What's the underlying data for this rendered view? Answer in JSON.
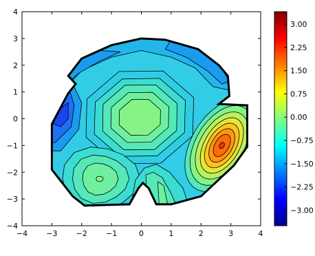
{
  "chart_data": {
    "type": "filled-contour",
    "title": "",
    "xlabel": "",
    "ylabel": "",
    "xlim": [
      -4,
      4
    ],
    "ylim": [
      -4,
      4
    ],
    "xticks": [
      -4,
      -3,
      -2,
      -1,
      0,
      1,
      2,
      3,
      4
    ],
    "yticks": [
      -4,
      -3,
      -2,
      -1,
      0,
      1,
      2,
      3,
      4
    ],
    "xtick_labels": [
      "−4",
      "−3",
      "−2",
      "−1",
      "0",
      "1",
      "2",
      "3",
      "4"
    ],
    "ytick_labels": [
      "−4",
      "−3",
      "−2",
      "−1",
      "0",
      "1",
      "2",
      "3",
      "4"
    ],
    "grid": false,
    "colormap": "jet",
    "colorbar": {
      "range": [
        -3.5,
        3.4
      ],
      "ticks": [
        3.0,
        2.25,
        1.5,
        0.75,
        0.0,
        -0.75,
        -1.5,
        -2.25,
        -3.0
      ],
      "tick_labels": [
        "3.00",
        "2.25",
        "1.50",
        "0.75",
        "0.00",
        "−0.75",
        "−1.50",
        "−2.25",
        "−3.00"
      ]
    },
    "boundary": [
      [
        -3.0,
        -1.1
      ],
      [
        -3.0,
        -0.2
      ],
      [
        -2.45,
        0.95
      ],
      [
        -2.2,
        1.3
      ],
      [
        -2.45,
        1.6
      ],
      [
        -2.0,
        2.25
      ],
      [
        -1.0,
        2.75
      ],
      [
        0.0,
        3.0
      ],
      [
        0.8,
        2.95
      ],
      [
        1.9,
        2.6
      ],
      [
        2.6,
        2.0
      ],
      [
        2.9,
        1.6
      ],
      [
        2.95,
        0.85
      ],
      [
        2.6,
        0.55
      ],
      [
        3.55,
        0.5
      ],
      [
        3.55,
        -1.05
      ],
      [
        3.1,
        -1.75
      ],
      [
        2.0,
        -2.9
      ],
      [
        1.0,
        -3.2
      ],
      [
        0.5,
        -3.2
      ],
      [
        0.25,
        -2.6
      ],
      [
        0.05,
        -2.4
      ],
      [
        -0.1,
        -2.6
      ],
      [
        -0.4,
        -3.2
      ],
      [
        -1.9,
        -3.25
      ],
      [
        -2.3,
        -2.9
      ],
      [
        -3.0,
        -1.9
      ]
    ],
    "features": [
      {
        "kind": "local maximum",
        "center": [
          -0.05,
          0.05
        ],
        "level": 0.1
      },
      {
        "kind": "local maximum",
        "center": [
          -1.4,
          -2.2
        ],
        "level": -0.3
      },
      {
        "kind": "peak",
        "center": [
          2.7,
          -1.0
        ],
        "level": 3.1
      },
      {
        "kind": "trough",
        "center": [
          -2.3,
          0.1
        ],
        "level": -2.4
      }
    ],
    "colors": {
      "background_fill": "#33cce6",
      "level_-2.4": "#1a44ee",
      "level_-2.1": "#1f70f2",
      "level_-1.8": "#1b9bf0",
      "level_-1.3": "#22b5ec",
      "level_-1.0": "#2ecde4",
      "level_-0.7": "#3ddcd2",
      "level_-0.4": "#55e8b8",
      "level_-0.15": "#6ff0a0",
      "level_0.1": "#86f387",
      "level_0.5": "#b8f060",
      "level_1.0": "#e6e53a",
      "level_1.6": "#ffc31f",
      "level_2.2": "#ff9710",
      "level_2.7": "#ff6b08",
      "level_3.1": "#e03a00",
      "colorbar_gradient": [
        "#00008f",
        "#0000ff",
        "#007fff",
        "#00ffff",
        "#7fff7f",
        "#ffff00",
        "#ff7f00",
        "#ff0000",
        "#7f0000"
      ]
    }
  }
}
